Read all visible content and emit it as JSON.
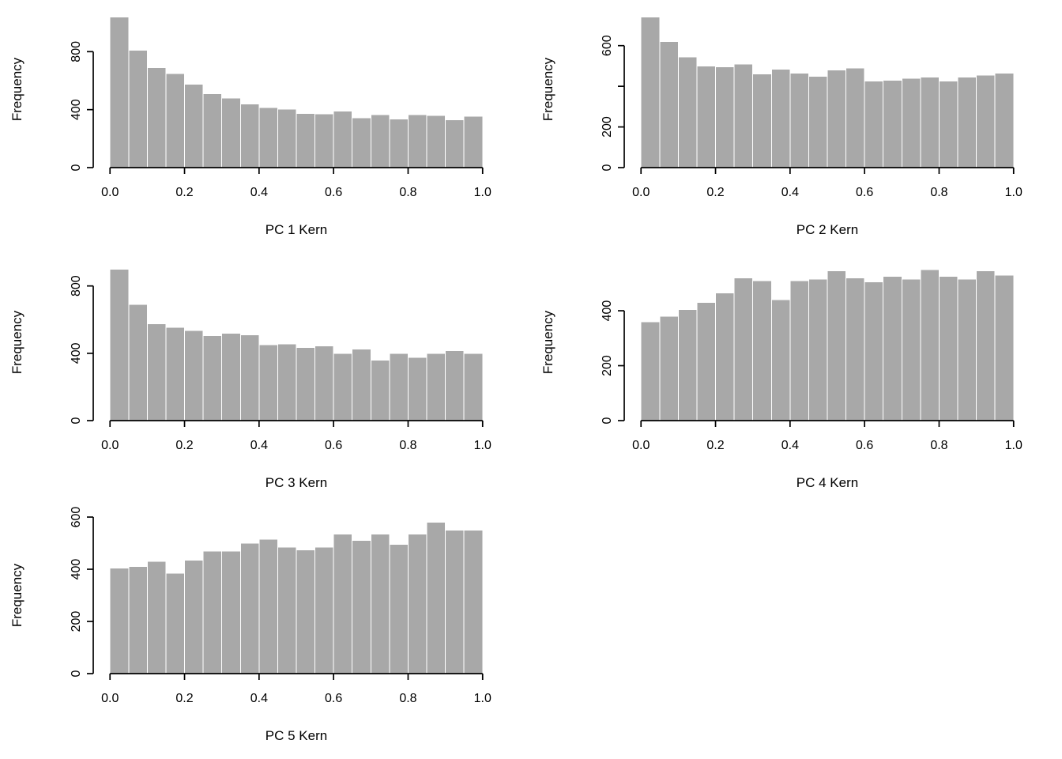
{
  "style": {
    "background": "#ffffff",
    "bar_fill": "#a8a8a8",
    "bar_stroke": "#ffffff",
    "axis_color": "#000000",
    "text_color": "#000000"
  },
  "chart_data": [
    {
      "type": "bar",
      "kind": "histogram",
      "title": "",
      "xlabel": "PC 1 Kern",
      "ylabel": "Frequency",
      "bin_start": 0,
      "bin_width": 0.05,
      "xlim": [
        0,
        1
      ],
      "xticks": [
        0,
        0.2,
        0.4,
        0.6,
        0.8,
        1.0
      ],
      "xtick_labels": [
        "0.0",
        "0.2",
        "0.4",
        "0.6",
        "0.8",
        "1.0"
      ],
      "yticks": [
        0,
        400,
        800
      ],
      "ytick_labels": [
        "0",
        "400",
        "800"
      ],
      "ymax": 1080,
      "grid": false,
      "legend": "none",
      "values": [
        1040,
        810,
        690,
        650,
        575,
        510,
        480,
        440,
        415,
        405,
        375,
        370,
        390,
        345,
        365,
        335,
        365,
        360,
        330,
        355
      ]
    },
    {
      "type": "bar",
      "kind": "histogram",
      "title": "",
      "xlabel": "PC 2 Kern",
      "ylabel": "Frequency",
      "bin_start": 0,
      "bin_width": 0.05,
      "xlim": [
        0,
        1
      ],
      "xticks": [
        0,
        0.2,
        0.4,
        0.6,
        0.8,
        1.0
      ],
      "xtick_labels": [
        "0.0",
        "0.2",
        "0.4",
        "0.6",
        "0.8",
        "1.0"
      ],
      "yticks": [
        0,
        200,
        400,
        600
      ],
      "ytick_labels": [
        "0",
        "200",
        "",
        "600"
      ],
      "ymax": 770,
      "grid": false,
      "legend": "none",
      "values": [
        740,
        620,
        545,
        500,
        495,
        510,
        460,
        485,
        465,
        450,
        480,
        490,
        425,
        430,
        440,
        445,
        425,
        445,
        455,
        465
      ]
    },
    {
      "type": "bar",
      "kind": "histogram",
      "title": "",
      "xlabel": "PC 3 Kern",
      "ylabel": "Frequency",
      "bin_start": 0,
      "bin_width": 0.05,
      "xlim": [
        0,
        1
      ],
      "xticks": [
        0,
        0.2,
        0.4,
        0.6,
        0.8,
        1.0
      ],
      "xtick_labels": [
        "0.0",
        "0.2",
        "0.4",
        "0.6",
        "0.8",
        "1.0"
      ],
      "yticks": [
        0,
        400,
        800
      ],
      "ytick_labels": [
        "0",
        "400",
        "800"
      ],
      "ymax": 930,
      "grid": false,
      "legend": "none",
      "values": [
        900,
        690,
        575,
        555,
        535,
        505,
        520,
        510,
        450,
        455,
        435,
        445,
        400,
        425,
        360,
        400,
        375,
        400,
        415,
        400
      ]
    },
    {
      "type": "bar",
      "kind": "histogram",
      "title": "",
      "xlabel": "PC 4 Kern",
      "ylabel": "Frequency",
      "bin_start": 0,
      "bin_width": 0.05,
      "xlim": [
        0,
        1
      ],
      "xticks": [
        0,
        0.2,
        0.4,
        0.6,
        0.8,
        1.0
      ],
      "xtick_labels": [
        "0.0",
        "0.2",
        "0.4",
        "0.6",
        "0.8",
        "1.0"
      ],
      "yticks": [
        0,
        200,
        400
      ],
      "ytick_labels": [
        "0",
        "200",
        "400"
      ],
      "ymax": 570,
      "grid": false,
      "legend": "none",
      "values": [
        360,
        380,
        405,
        430,
        465,
        520,
        510,
        440,
        510,
        515,
        545,
        520,
        505,
        525,
        515,
        550,
        525,
        515,
        545,
        530
      ]
    },
    {
      "type": "bar",
      "kind": "histogram",
      "title": "",
      "xlabel": "PC 5 Kern",
      "ylabel": "Frequency",
      "bin_start": 0,
      "bin_width": 0.05,
      "xlim": [
        0,
        1
      ],
      "xticks": [
        0,
        0.2,
        0.4,
        0.6,
        0.8,
        1.0
      ],
      "xtick_labels": [
        "0.0",
        "0.2",
        "0.4",
        "0.6",
        "0.8",
        "1.0"
      ],
      "yticks": [
        0,
        200,
        400,
        600
      ],
      "ytick_labels": [
        "0",
        "200",
        "400",
        "600"
      ],
      "ymax": 600,
      "grid": false,
      "legend": "none",
      "values": [
        405,
        410,
        430,
        385,
        435,
        470,
        470,
        500,
        515,
        485,
        475,
        485,
        535,
        510,
        535,
        495,
        535,
        580,
        550,
        550
      ]
    }
  ]
}
